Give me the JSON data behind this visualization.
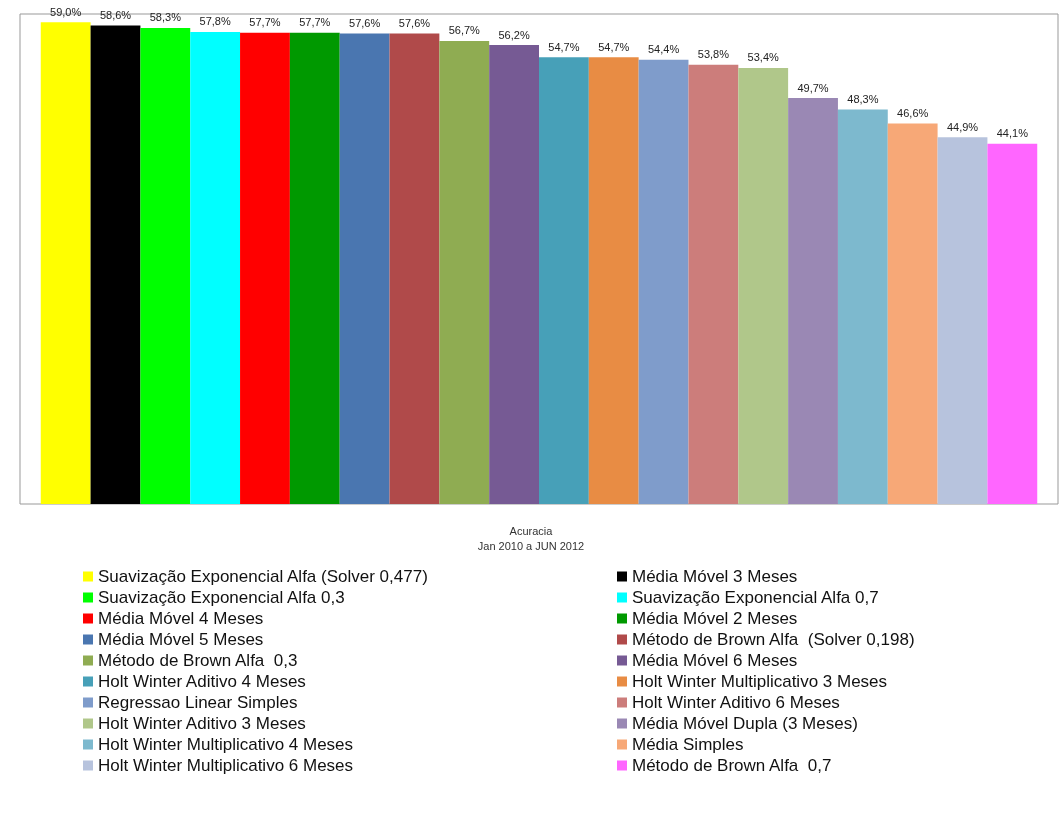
{
  "chart_data": {
    "type": "bar",
    "title": "Acuracia",
    "subtitle": "Jan 2010 a JUN 2012",
    "categories": [
      null
    ],
    "series": [
      {
        "name": "Suavização Exponencial Alfa (Solver 0,477)",
        "color": "#ffff00",
        "values": [
          59.0
        ],
        "value_labels": [
          "59,0%"
        ]
      },
      {
        "name": "Média Móvel 3 Meses",
        "color": "#000000",
        "values": [
          58.6
        ],
        "value_labels": [
          "58,6%"
        ]
      },
      {
        "name": "Suavização Exponencial Alfa 0,3",
        "color": "#00ff00",
        "values": [
          58.3
        ],
        "value_labels": [
          "58,3%"
        ]
      },
      {
        "name": "Suavização Exponencial Alfa 0,7",
        "color": "#00ffff",
        "values": [
          57.8
        ],
        "value_labels": [
          "57,8%"
        ]
      },
      {
        "name": "Média Móvel 4 Meses",
        "color": "#ff0000",
        "values": [
          57.7
        ],
        "value_labels": [
          "57,7%"
        ]
      },
      {
        "name": "Média Móvel 2 Meses",
        "color": "#009900",
        "values": [
          57.7
        ],
        "value_labels": [
          "57,7%"
        ]
      },
      {
        "name": "Média Móvel 5 Meses",
        "color": "#4a76b0",
        "values": [
          57.6
        ],
        "value_labels": [
          "57,6%"
        ]
      },
      {
        "name": "Método de Brown Alfa  (Solver 0,198)",
        "color": "#b04a4a",
        "values": [
          57.6
        ],
        "value_labels": [
          "57,6%"
        ]
      },
      {
        "name": "Método de Brown Alfa  0,3",
        "color": "#8fac52",
        "values": [
          56.7
        ],
        "value_labels": [
          "56,7%"
        ]
      },
      {
        "name": "Média Móvel 6 Meses",
        "color": "#765a94",
        "values": [
          56.2
        ],
        "value_labels": [
          "56,2%"
        ]
      },
      {
        "name": "Holt Winter Aditivo 4 Meses",
        "color": "#47a0b8",
        "values": [
          54.7
        ],
        "value_labels": [
          "54,7%"
        ]
      },
      {
        "name": "Holt Winter Multiplicativo 3 Meses",
        "color": "#e88c44",
        "values": [
          54.7
        ],
        "value_labels": [
          "54,7%"
        ]
      },
      {
        "name": "Regressao Linear Simples",
        "color": "#7f9ccb",
        "values": [
          54.4
        ],
        "value_labels": [
          "54,4%"
        ]
      },
      {
        "name": "Holt Winter Aditivo 6 Meses",
        "color": "#cc7d7b",
        "values": [
          53.8
        ],
        "value_labels": [
          "53,8%"
        ]
      },
      {
        "name": "Holt Winter Aditivo 3 Meses",
        "color": "#b0c78a",
        "values": [
          53.4
        ],
        "value_labels": [
          "53,4%"
        ]
      },
      {
        "name": "Média Móvel Dupla (3 Meses)",
        "color": "#9a88b4",
        "values": [
          49.7
        ],
        "value_labels": [
          "49,7%"
        ]
      },
      {
        "name": "Holt Winter Multiplicativo 4 Meses",
        "color": "#7db9ce",
        "values": [
          48.3
        ],
        "value_labels": [
          "48,3%"
        ]
      },
      {
        "name": "Média Simples",
        "color": "#f7a877",
        "values": [
          46.6
        ],
        "value_labels": [
          "46,6%"
        ]
      },
      {
        "name": "Holt Winter Multiplicativo 6 Meses",
        "color": "#b7c3dd",
        "values": [
          44.9
        ],
        "value_labels": [
          "44,9%"
        ]
      },
      {
        "name": "Método de Brown Alfa  0,7",
        "color": "#ff66ff",
        "values": [
          44.1
        ],
        "value_labels": [
          "44,1%"
        ]
      }
    ],
    "legend": "bottom",
    "tick_labels": false
  }
}
